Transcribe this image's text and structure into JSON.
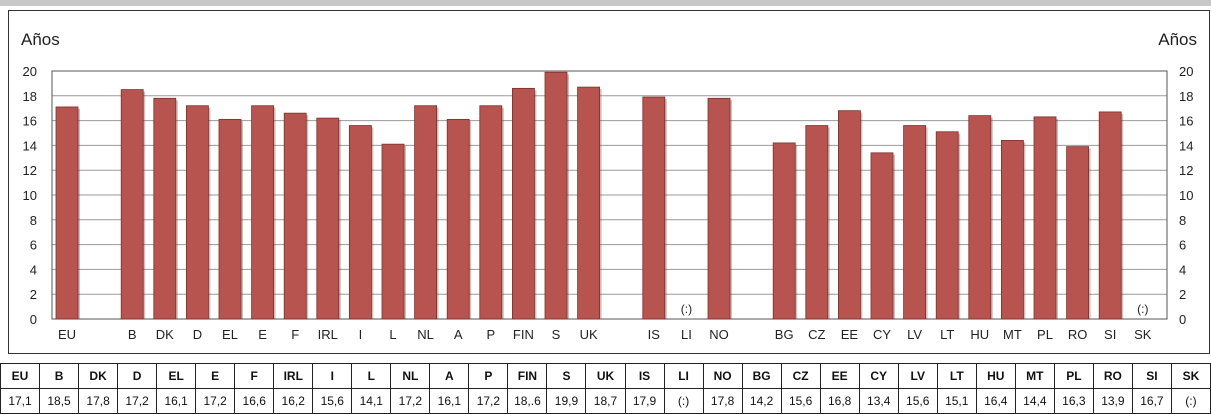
{
  "chart_data": {
    "type": "bar",
    "ylabel_left": "Años",
    "ylabel_right": "Años",
    "ylim": [
      0,
      20
    ],
    "yticks": [
      0,
      2,
      4,
      6,
      8,
      10,
      12,
      14,
      16,
      18,
      20
    ],
    "grid": true,
    "bar_color": "#b85450",
    "categories": [
      "EU",
      "B",
      "DK",
      "D",
      "EL",
      "E",
      "F",
      "IRL",
      "I",
      "L",
      "NL",
      "A",
      "P",
      "FIN",
      "S",
      "UK",
      "IS",
      "LI",
      "NO",
      "BG",
      "CZ",
      "EE",
      "CY",
      "LV",
      "LT",
      "HU",
      "MT",
      "PL",
      "RO",
      "SI",
      "SK"
    ],
    "values": [
      17.1,
      18.5,
      17.8,
      17.2,
      16.1,
      17.2,
      16.6,
      16.2,
      15.6,
      14.1,
      17.2,
      16.1,
      17.2,
      18.6,
      19.9,
      18.7,
      17.9,
      null,
      17.8,
      14.2,
      15.6,
      16.8,
      13.4,
      15.6,
      15.1,
      16.4,
      14.4,
      16.3,
      13.9,
      16.7,
      null
    ],
    "missing_label": "(:)"
  },
  "table": {
    "headers": [
      "EU",
      "B",
      "DK",
      "D",
      "EL",
      "E",
      "F",
      "IRL",
      "I",
      "L",
      "NL",
      "A",
      "P",
      "FIN",
      "S",
      "UK",
      "IS",
      "LI",
      "NO",
      "BG",
      "CZ",
      "EE",
      "CY",
      "LV",
      "LT",
      "HU",
      "MT",
      "PL",
      "RO",
      "SI",
      "SK"
    ],
    "values": [
      "17,1",
      "18,5",
      "17,8",
      "17,2",
      "16,1",
      "17,2",
      "16,6",
      "16,2",
      "15,6",
      "14,1",
      "17,2",
      "16,1",
      "17,2",
      "18,.6",
      "19,9",
      "18,7",
      "17,9",
      "(:)",
      "17,8",
      "14,2",
      "15,6",
      "16,8",
      "13,4",
      "15,6",
      "15,1",
      "16,4",
      "14,4",
      "16,3",
      "13,9",
      "16,7",
      "(:)"
    ]
  }
}
